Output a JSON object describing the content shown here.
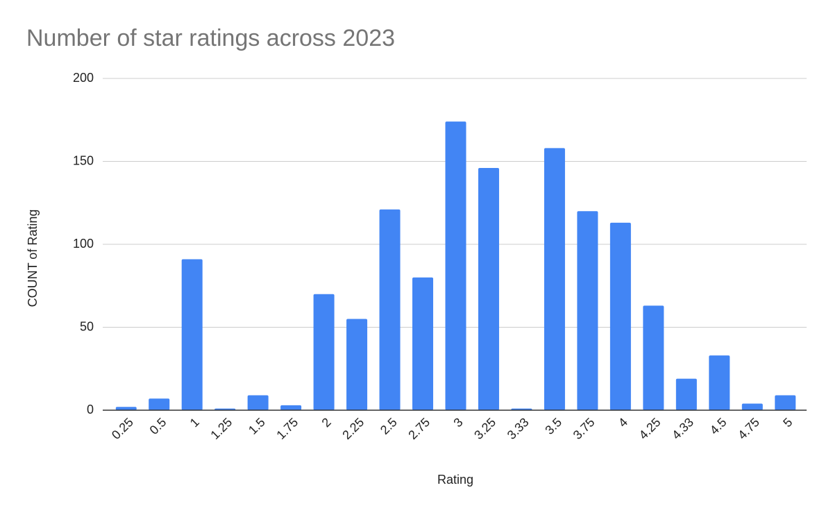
{
  "chart_data": {
    "type": "bar",
    "title": "Number of star ratings across 2023",
    "x_label": "Rating",
    "y_label": "COUNT of Rating",
    "categories": [
      "0.25",
      "0.5",
      "1",
      "1.25",
      "1.5",
      "1.75",
      "2",
      "2.25",
      "2.5",
      "2.75",
      "3",
      "3.25",
      "3.33",
      "3.5",
      "3.75",
      "4",
      "4.25",
      "4.33",
      "4.5",
      "4.75",
      "5"
    ],
    "values": [
      2,
      7,
      91,
      1,
      9,
      3,
      70,
      55,
      121,
      80,
      174,
      146,
      1,
      158,
      120,
      113,
      63,
      19,
      33,
      4,
      9
    ],
    "color": "#4285f4",
    "ylim": [
      0,
      200
    ],
    "yticks": [
      0,
      50,
      100,
      150,
      200
    ],
    "grid": true
  }
}
